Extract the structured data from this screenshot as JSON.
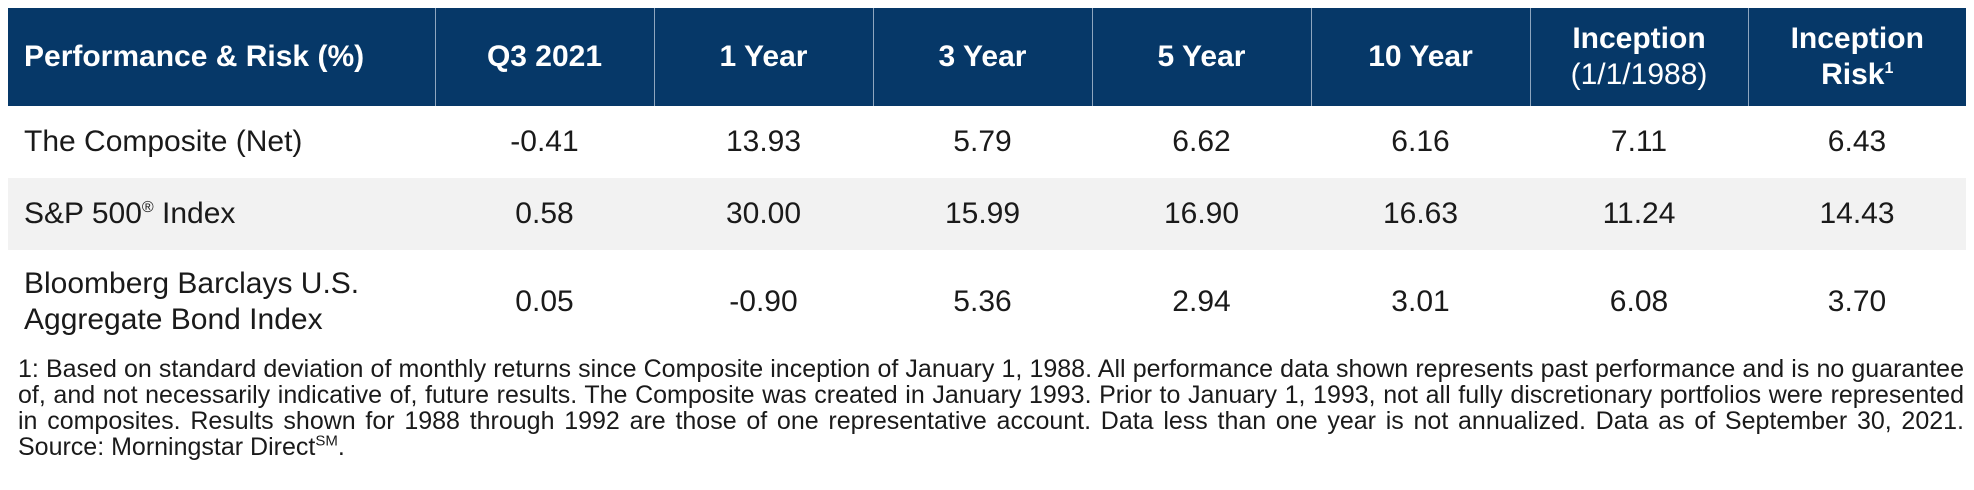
{
  "table": {
    "headers": [
      {
        "main": "Performance & Risk (%)",
        "sub": "",
        "sup": ""
      },
      {
        "main": "Q3 2021",
        "sub": "",
        "sup": ""
      },
      {
        "main": "1 Year",
        "sub": "",
        "sup": ""
      },
      {
        "main": "3 Year",
        "sub": "",
        "sup": ""
      },
      {
        "main": "5 Year",
        "sub": "",
        "sup": ""
      },
      {
        "main": "10 Year",
        "sub": "",
        "sup": ""
      },
      {
        "main": "Inception",
        "sub": "(1/1/1988)",
        "sup": ""
      },
      {
        "main": "Inception",
        "sub": "Risk",
        "sup": "1"
      }
    ],
    "rows": [
      {
        "name": "The Composite (Net)",
        "name_sup": "",
        "name_suffix": "",
        "values": [
          "-0.41",
          "13.93",
          "5.79",
          "6.62",
          "6.16",
          "7.11",
          "6.43"
        ]
      },
      {
        "name": "S&P 500",
        "name_sup": "®",
        "name_suffix": " Index",
        "values": [
          "0.58",
          "30.00",
          "15.99",
          "16.90",
          "16.63",
          "11.24",
          "14.43"
        ]
      },
      {
        "name": "Bloomberg Barclays U.S.",
        "name_line2": "Aggregate Bond Index",
        "name_sup": "",
        "name_suffix": "",
        "values": [
          "0.05",
          "-0.90",
          "5.36",
          "2.94",
          "3.01",
          "6.08",
          "3.70"
        ]
      }
    ]
  },
  "footnote": {
    "text": "1: Based on standard deviation of monthly returns since Composite inception of January 1, 1988. All performance data shown represents past performance and is no guarantee of, and not necessarily indicative of, future results. The Composite was created in January 1993. Prior to January 1, 1993, not all fully discretionary portfolios were represented in composites. Results shown for 1988 through 1992 are those of one representative account. Data less than one year is not annualized. Data as of September 30, 2021. Source: Morningstar Direct",
    "sup": "SM",
    "end": "."
  }
}
